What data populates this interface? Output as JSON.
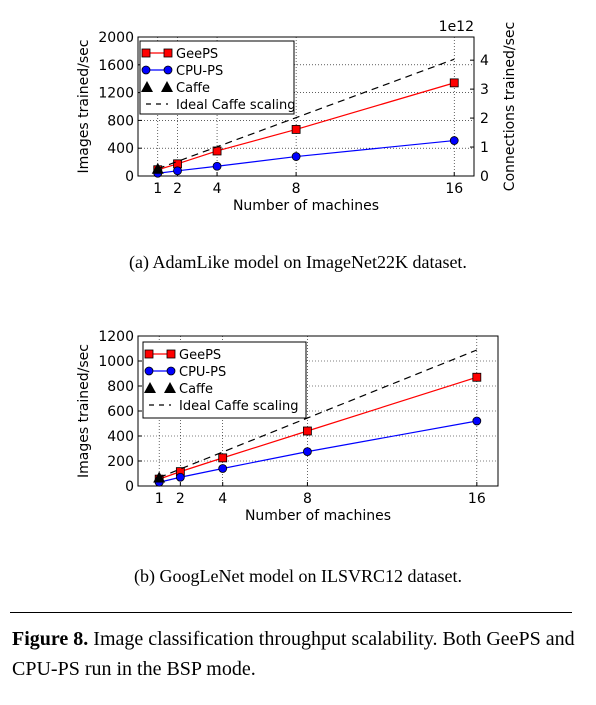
{
  "figure": {
    "label": "Figure 8.",
    "caption": "Image classification throughput scalability. Both GeePS and CPU-PS run in the BSP mode."
  },
  "chart_data": [
    {
      "type": "line",
      "caption": "(a) AdamLike model on ImageNet22K dataset.",
      "xlabel": "Number of machines",
      "ylabel": "Images trained/sec",
      "y2label": "Connections trained/sec",
      "y2_offset_text": "1e12",
      "xlim": [
        0,
        17
      ],
      "ylim": [
        0,
        2000
      ],
      "y2lim": [
        0,
        4.8
      ],
      "xticks": [
        1,
        2,
        4,
        8,
        16
      ],
      "yticks": [
        0,
        400,
        800,
        1200,
        1600,
        2000
      ],
      "y2ticks": [
        0,
        1,
        2,
        3,
        4
      ],
      "grid": true,
      "legend_position": "upper-left",
      "series": [
        {
          "name": "GeePS",
          "color": "#ff0000",
          "marker": "square",
          "line": "solid",
          "x": [
            1,
            2,
            4,
            8,
            16
          ],
          "y": [
            90,
            175,
            360,
            670,
            1340
          ]
        },
        {
          "name": "CPU-PS",
          "color": "#0000ff",
          "marker": "circle",
          "line": "solid",
          "x": [
            1,
            2,
            4,
            8,
            16
          ],
          "y": [
            40,
            75,
            140,
            280,
            510
          ]
        },
        {
          "name": "Caffe",
          "color": "#000000",
          "marker": "triangle",
          "line": "none",
          "x": [
            1
          ],
          "y": [
            105
          ]
        },
        {
          "name": "Ideal Caffe scaling",
          "color": "#000000",
          "marker": "none",
          "line": "dashed",
          "x": [
            1,
            16
          ],
          "y": [
            105,
            1680
          ]
        }
      ]
    },
    {
      "type": "line",
      "caption": "(b) GoogLeNet model on ILSVRC12 dataset.",
      "xlabel": "Number of machines",
      "ylabel": "Images trained/sec",
      "xlim": [
        0,
        17
      ],
      "ylim": [
        0,
        1200
      ],
      "xticks": [
        1,
        2,
        4,
        8,
        16
      ],
      "yticks": [
        0,
        200,
        400,
        600,
        800,
        1000,
        1200
      ],
      "grid": true,
      "legend_position": "upper-left",
      "series": [
        {
          "name": "GeePS",
          "color": "#ff0000",
          "marker": "square",
          "line": "solid",
          "x": [
            1,
            2,
            4,
            8,
            16
          ],
          "y": [
            55,
            115,
            225,
            440,
            870
          ]
        },
        {
          "name": "CPU-PS",
          "color": "#0000ff",
          "marker": "circle",
          "line": "solid",
          "x": [
            1,
            2,
            4,
            8,
            16
          ],
          "y": [
            30,
            70,
            140,
            275,
            520
          ]
        },
        {
          "name": "Caffe",
          "color": "#000000",
          "marker": "triangle",
          "line": "none",
          "x": [
            1
          ],
          "y": [
            68
          ]
        },
        {
          "name": "Ideal Caffe scaling",
          "color": "#000000",
          "marker": "none",
          "line": "dashed",
          "x": [
            1,
            16
          ],
          "y": [
            68,
            1088
          ]
        }
      ]
    }
  ]
}
